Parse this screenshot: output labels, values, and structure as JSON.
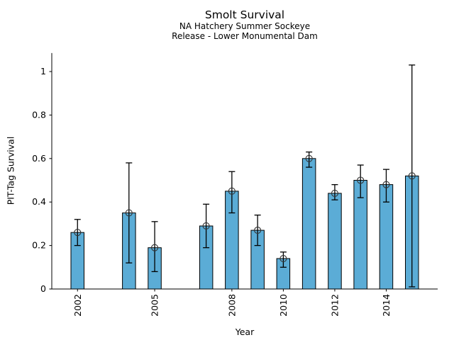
{
  "header": {
    "title": "Smolt Survival",
    "subtitle_line1": "NA Hatchery Summer Sockeye",
    "subtitle_line2": "Release - Lower Monumental Dam"
  },
  "axes": {
    "xlabel": "Year",
    "ylabel": "PIT-Tag Survival"
  },
  "chart_data": {
    "type": "bar",
    "title": "Smolt Survival",
    "subtitle": [
      "NA Hatchery Summer Sockeye",
      "Release - Lower Monumental Dam"
    ],
    "xlabel": "Year",
    "ylabel": "PIT-Tag Survival",
    "xlim": [
      2001,
      2016
    ],
    "ylim": [
      0,
      1.085
    ],
    "xticks": [
      2002,
      2005,
      2008,
      2010,
      2012,
      2014
    ],
    "yticks": [
      0,
      0.2,
      0.4,
      0.6,
      0.8,
      1
    ],
    "grid": false,
    "legend": null,
    "bar_color": "#5bacd6",
    "bar_edge_color": "#000000",
    "error_color": "#000000",
    "marker": "open-circle",
    "marker_color": "#333333",
    "series": [
      {
        "name": "PIT-Tag Survival",
        "points": [
          {
            "year": 2002,
            "value": 0.26,
            "ci_low": 0.2,
            "ci_high": 0.32
          },
          {
            "year": 2004,
            "value": 0.35,
            "ci_low": 0.12,
            "ci_high": 0.58
          },
          {
            "year": 2005,
            "value": 0.19,
            "ci_low": 0.08,
            "ci_high": 0.31
          },
          {
            "year": 2007,
            "value": 0.29,
            "ci_low": 0.19,
            "ci_high": 0.39
          },
          {
            "year": 2008,
            "value": 0.45,
            "ci_low": 0.35,
            "ci_high": 0.54
          },
          {
            "year": 2009,
            "value": 0.27,
            "ci_low": 0.2,
            "ci_high": 0.34
          },
          {
            "year": 2010,
            "value": 0.14,
            "ci_low": 0.1,
            "ci_high": 0.17
          },
          {
            "year": 2011,
            "value": 0.6,
            "ci_low": 0.56,
            "ci_high": 0.63
          },
          {
            "year": 2012,
            "value": 0.44,
            "ci_low": 0.41,
            "ci_high": 0.48
          },
          {
            "year": 2013,
            "value": 0.5,
            "ci_low": 0.42,
            "ci_high": 0.57
          },
          {
            "year": 2014,
            "value": 0.48,
            "ci_low": 0.4,
            "ci_high": 0.55
          },
          {
            "year": 2015,
            "value": 0.52,
            "ci_low": 0.01,
            "ci_high": 1.03
          }
        ]
      }
    ]
  }
}
